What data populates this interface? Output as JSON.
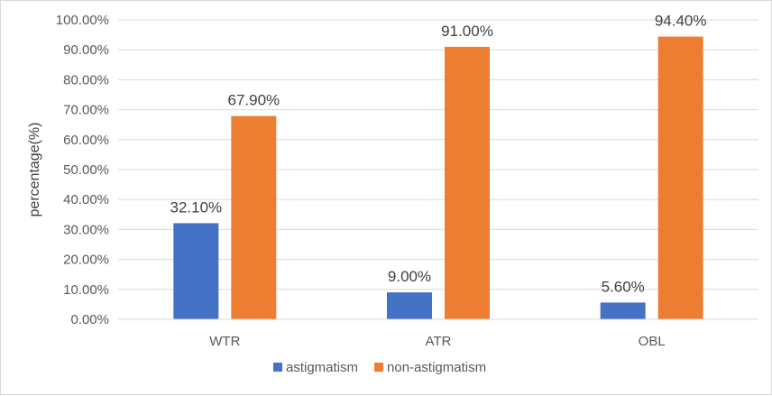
{
  "chart_data": {
    "type": "bar",
    "categories": [
      "WTR",
      "ATR",
      "OBL"
    ],
    "series": [
      {
        "name": "astigmatism",
        "values": [
          32.1,
          9.0,
          5.6
        ],
        "color": "#4472c4"
      },
      {
        "name": "non-astigmatism",
        "values": [
          67.9,
          91.0,
          94.4
        ],
        "color": "#ed7d31"
      }
    ],
    "ylabel": "percentage(%)",
    "xlabel": "",
    "ylim": [
      0,
      100
    ],
    "ytick_step": 10,
    "ytick_labels": [
      "0.00%",
      "10.00%",
      "20.00%",
      "30.00%",
      "40.00%",
      "50.00%",
      "60.00%",
      "70.00%",
      "80.00%",
      "90.00%",
      "100.00%"
    ],
    "data_labels": [
      [
        "32.10%",
        "9.00%",
        "5.60%"
      ],
      [
        "67.90%",
        "91.00%",
        "94.40%"
      ]
    ],
    "grid": true,
    "legend_position": "bottom",
    "gridline_color": "#d9d9d9"
  }
}
